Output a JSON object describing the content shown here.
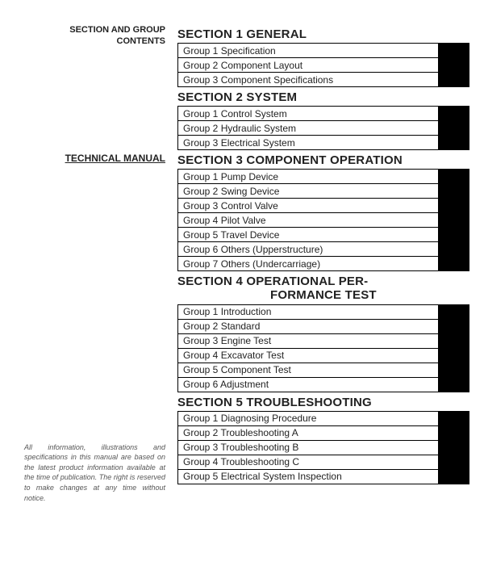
{
  "left": {
    "sg_line1": "SECTION AND GROUP",
    "sg_line2": "CONTENTS",
    "tm": "TECHNICAL MANUAL",
    "disclaimer": "All information, illustrations and specifications in this manual are based on the latest product information available at the time of publication. The right is reserved to make changes at any time without notice."
  },
  "sections": [
    {
      "title": "SECTION 1 GENERAL",
      "groups": [
        "Group 1 Specification",
        "Group 2 Component Layout",
        "Group 3 Component Specifications"
      ]
    },
    {
      "title": "SECTION 2 SYSTEM",
      "groups": [
        "Group 1 Control System",
        "Group 2 Hydraulic System",
        "Group 3 Electrical System"
      ]
    },
    {
      "title": "SECTION 3 COMPONENT OPERATION",
      "groups": [
        "Group 1 Pump Device",
        "Group 2 Swing Device",
        "Group 3 Control Valve",
        "Group 4 Pilot Valve",
        "Group 5 Travel Device",
        "Group 6 Others (Upperstructure)",
        "Group 7 Others (Undercarriage)"
      ]
    },
    {
      "title": "SECTION 4  OPERATIONAL PER-\nFORMANCE TEST",
      "groups": [
        "Group 1 Introduction",
        "Group 2 Standard",
        "Group 3 Engine Test",
        "Group 4 Excavator Test",
        "Group 5 Component Test",
        "Group 6 Adjustment"
      ]
    },
    {
      "title": "SECTION 5 TROUBLESHOOTING",
      "groups": [
        "Group 1 Diagnosing Procedure",
        "Group 2 Troubleshooting A",
        "Group 3 Troubleshooting B",
        "Group 4 Troubleshooting C",
        "Group 5 Electrical System Inspection"
      ]
    }
  ]
}
